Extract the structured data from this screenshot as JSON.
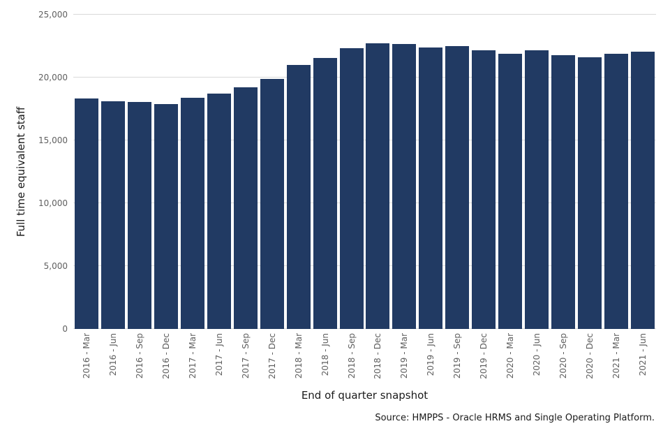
{
  "chart_data": {
    "type": "bar",
    "title": "",
    "xlabel": "End of quarter snapshot",
    "ylabel": "Full time equivalent staff",
    "categories": [
      "2016 - Mar",
      "2016 - Jun",
      "2016 - Sep",
      "2016 - Dec",
      "2017 - Mar",
      "2017 - Jun",
      "2017 - Sep",
      "2017 - Dec",
      "2018 - Mar",
      "2018 - Jun",
      "2018 - Sep",
      "2018 - Dec",
      "2019 - Mar",
      "2019 - Jun",
      "2019 - Sep",
      "2019 - Dec",
      "2020 - Mar",
      "2020 - Jun",
      "2020 - Sep",
      "2020 - Dec",
      "2021 - Mar",
      "2021 - Jun"
    ],
    "values": [
      18350,
      18100,
      18050,
      17900,
      18400,
      18750,
      19200,
      19900,
      21000,
      21550,
      22350,
      22700,
      22650,
      22400,
      22500,
      22150,
      21900,
      22150,
      21800,
      21600,
      21900,
      22050
    ],
    "ylim": [
      0,
      25000
    ],
    "yticks": [
      0,
      5000,
      10000,
      15000,
      20000,
      25000
    ],
    "ytick_labels": [
      "0",
      "5,000",
      "10,000",
      "15,000",
      "20,000",
      "25,000"
    ],
    "grid": "horizontal",
    "legend": "none",
    "bar_color": "#213a63",
    "gridline_color": "#d9d9d9"
  },
  "source": {
    "text": "Source: HMPPS - Oracle HRMS and Single Operating Platform."
  }
}
